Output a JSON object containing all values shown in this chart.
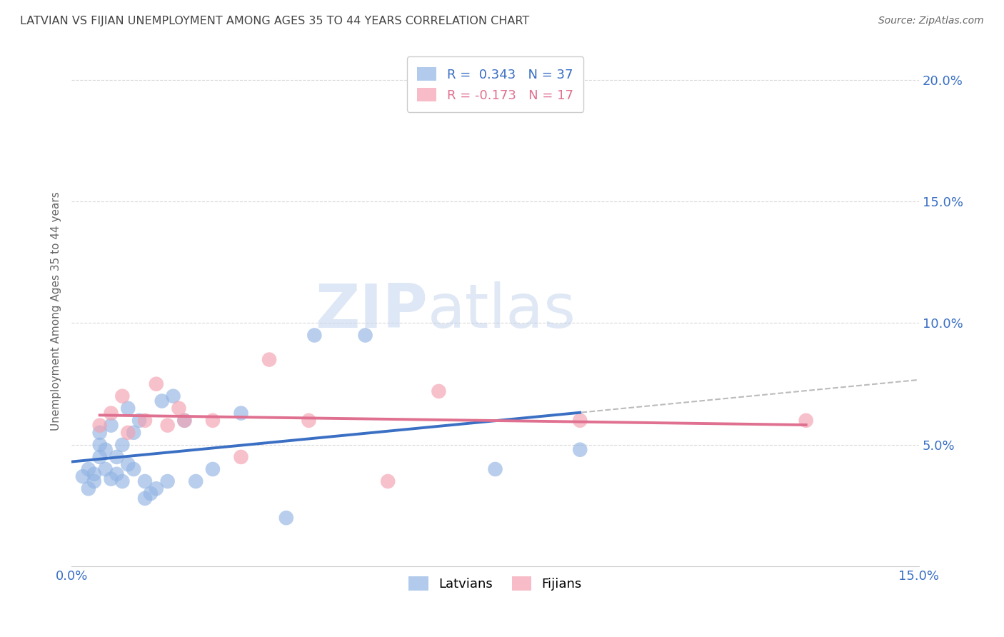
{
  "title": "LATVIAN VS FIJIAN UNEMPLOYMENT AMONG AGES 35 TO 44 YEARS CORRELATION CHART",
  "source": "Source: ZipAtlas.com",
  "ylabel": "Unemployment Among Ages 35 to 44 years",
  "xlim": [
    0.0,
    0.15
  ],
  "ylim": [
    0.0,
    0.21
  ],
  "yticks": [
    0.05,
    0.1,
    0.15,
    0.2
  ],
  "ytick_labels": [
    "5.0%",
    "10.0%",
    "15.0%",
    "20.0%"
  ],
  "xticks": [
    0.0,
    0.025,
    0.05,
    0.075,
    0.1,
    0.125,
    0.15
  ],
  "latvian_R": 0.343,
  "latvian_N": 37,
  "fijian_R": -0.173,
  "fijian_N": 17,
  "latvian_color": "#92b4e3",
  "fijian_color": "#f4a0b0",
  "latvian_line_color": "#3a6fc4",
  "fijian_line_color": "#e07090",
  "trendline_color": "#b0b0b0",
  "latvian_x": [
    0.002,
    0.003,
    0.003,
    0.004,
    0.004,
    0.005,
    0.005,
    0.005,
    0.006,
    0.006,
    0.007,
    0.007,
    0.008,
    0.008,
    0.009,
    0.009,
    0.01,
    0.01,
    0.011,
    0.011,
    0.012,
    0.013,
    0.013,
    0.014,
    0.015,
    0.016,
    0.017,
    0.018,
    0.02,
    0.022,
    0.025,
    0.03,
    0.038,
    0.043,
    0.052,
    0.075,
    0.09
  ],
  "latvian_y": [
    0.037,
    0.032,
    0.04,
    0.035,
    0.038,
    0.045,
    0.05,
    0.055,
    0.04,
    0.048,
    0.036,
    0.058,
    0.038,
    0.045,
    0.035,
    0.05,
    0.042,
    0.065,
    0.055,
    0.04,
    0.06,
    0.035,
    0.028,
    0.03,
    0.032,
    0.068,
    0.035,
    0.07,
    0.06,
    0.035,
    0.04,
    0.063,
    0.02,
    0.095,
    0.095,
    0.04,
    0.048
  ],
  "fijian_x": [
    0.005,
    0.007,
    0.009,
    0.01,
    0.013,
    0.015,
    0.017,
    0.019,
    0.02,
    0.025,
    0.03,
    0.035,
    0.042,
    0.056,
    0.065,
    0.09,
    0.13
  ],
  "fijian_y": [
    0.058,
    0.063,
    0.07,
    0.055,
    0.06,
    0.075,
    0.058,
    0.065,
    0.06,
    0.06,
    0.045,
    0.085,
    0.06,
    0.035,
    0.072,
    0.06,
    0.06
  ],
  "watermark_text": "ZIPatlas",
  "watermark_color": "#c8d8ef",
  "background_color": "#ffffff",
  "grid_color": "#d0d0d0",
  "title_color": "#444444",
  "source_color": "#666666",
  "tick_color": "#3a6fc4",
  "ylabel_color": "#666666"
}
